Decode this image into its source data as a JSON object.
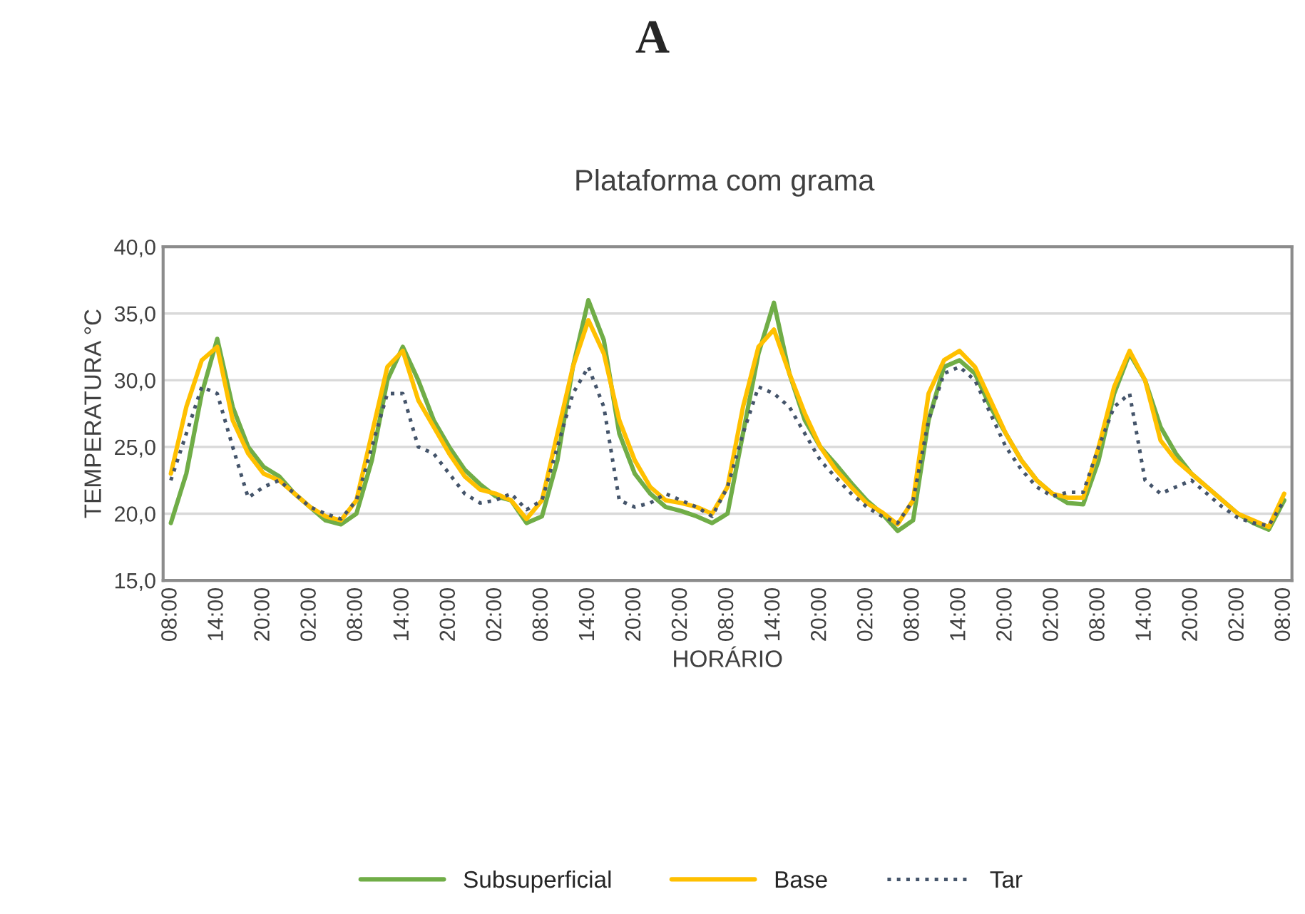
{
  "chart_data": {
    "type": "line",
    "title": "A",
    "subtitle": "Plataforma com grama",
    "xlabel": "HORÁRIO",
    "ylabel": "TEMPERATURA °C",
    "categories": [
      "08:00",
      null,
      null,
      "14:00",
      null,
      null,
      "20:00",
      null,
      null,
      "02:00",
      null,
      null,
      "08:00",
      null,
      null,
      "14:00",
      null,
      null,
      "20:00",
      null,
      null,
      "02:00",
      null,
      null,
      "08:00",
      null,
      null,
      "14:00",
      null,
      null,
      "20:00",
      null,
      null,
      "02:00",
      null,
      null,
      "08:00",
      null,
      null,
      "14:00",
      null,
      null,
      "20:00",
      null,
      null,
      "02:00",
      null,
      null,
      "08:00",
      null,
      null,
      "14:00",
      null,
      null,
      "20:00",
      null,
      null,
      "02:00",
      null,
      null,
      "08:00",
      null,
      null,
      "14:00",
      null,
      null,
      "20:00",
      null,
      null,
      "02:00",
      null,
      null,
      "08:00"
    ],
    "ylim": [
      15,
      40
    ],
    "yticks": [
      {
        "value": 15,
        "label": "15,0"
      },
      {
        "value": 20,
        "label": "20,0"
      },
      {
        "value": 25,
        "label": "25,0"
      },
      {
        "value": 30,
        "label": "30,0"
      },
      {
        "value": 35,
        "label": "35,0"
      },
      {
        "value": 40,
        "label": "40,0"
      }
    ],
    "grid": "y",
    "legend": "bottom",
    "marker": "none",
    "series": [
      {
        "name": "Subsuperficial",
        "color": "#70ad47",
        "line_style": "solid",
        "values": [
          19.3,
          23,
          29,
          33.1,
          28,
          25,
          23.5,
          22.8,
          21.5,
          20.5,
          19.5,
          19.2,
          20,
          24,
          30,
          32.5,
          30,
          27,
          25,
          23.3,
          22.2,
          21.3,
          21,
          19.3,
          19.8,
          24,
          31,
          36,
          33,
          26,
          23,
          21.5,
          20.5,
          20.2,
          19.8,
          19.3,
          20,
          26,
          32,
          35.8,
          30.5,
          27,
          25,
          23.7,
          22.3,
          21,
          20,
          18.7,
          19.5,
          27,
          31,
          31.5,
          30.5,
          28,
          26,
          24,
          22.5,
          21.5,
          20.8,
          20.7,
          24,
          29,
          32,
          30,
          26.5,
          24.5,
          23,
          22,
          21,
          20,
          19.3,
          18.8,
          21
        ]
      },
      {
        "name": "Base",
        "color": "#ffc000",
        "line_style": "solid",
        "values": [
          23,
          28,
          31.5,
          32.5,
          27,
          24.5,
          23,
          22.5,
          21.5,
          20.5,
          19.8,
          19.5,
          21,
          26,
          31,
          32.2,
          28.5,
          26.5,
          24.5,
          22.8,
          21.8,
          21.5,
          21,
          19.6,
          21,
          26,
          31,
          34.5,
          32,
          27,
          24,
          22,
          21,
          20.8,
          20.5,
          20,
          22,
          28,
          32.5,
          33.8,
          30.5,
          27.5,
          25,
          23.3,
          22,
          20.8,
          20.1,
          19.2,
          21,
          29,
          31.5,
          32.2,
          31,
          28.5,
          26,
          24,
          22.5,
          21.5,
          21.2,
          21.2,
          25,
          29.5,
          32.2,
          30,
          25.5,
          24,
          23,
          22,
          21,
          20,
          19.5,
          19,
          21.5
        ]
      },
      {
        "name": "Tar",
        "color": "#44546a",
        "line_style": "dotted",
        "values": [
          22.5,
          26,
          29.5,
          29,
          25,
          21.2,
          22,
          22.5,
          21.5,
          20.5,
          20,
          19.6,
          21,
          25,
          29,
          29,
          25,
          24.5,
          23,
          21.5,
          20.8,
          21,
          21.5,
          20.3,
          21,
          25,
          29,
          31,
          28,
          21,
          20.5,
          20.8,
          21.5,
          21,
          20.5,
          19.8,
          22,
          26,
          29.5,
          29,
          28,
          26,
          24,
          22.7,
          21.5,
          20.5,
          19.8,
          19.3,
          21,
          27,
          30.5,
          31,
          30,
          27.5,
          25,
          23.3,
          22,
          21.3,
          21.6,
          21.6,
          25,
          28,
          29,
          22.5,
          21.5,
          22,
          22.5,
          21.5,
          20.5,
          19.7,
          19.3,
          19.1,
          21
        ]
      }
    ]
  }
}
